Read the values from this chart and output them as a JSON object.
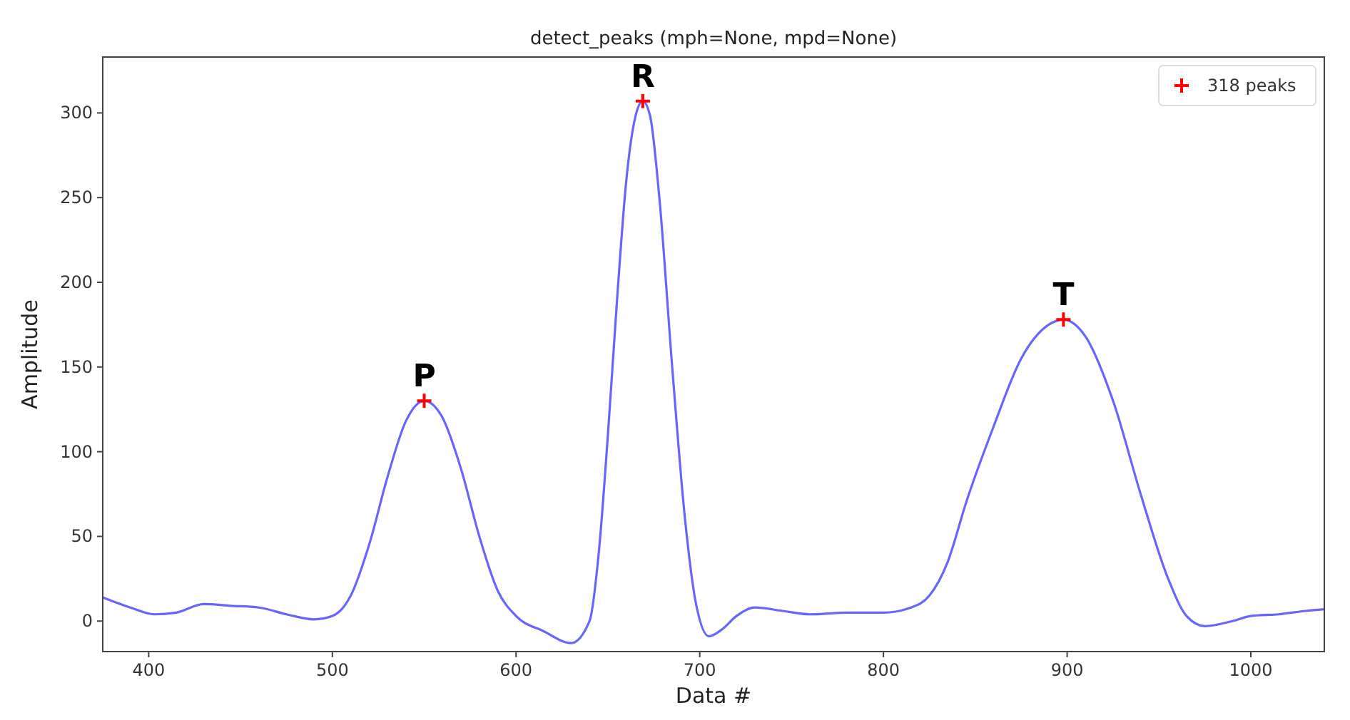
{
  "chart_data": {
    "type": "line",
    "title": "detect_peaks (mph=None, mpd=None)",
    "xlabel": "Data #",
    "ylabel": "Amplitude",
    "xlim": [
      375,
      1040
    ],
    "xticks": [
      400,
      500,
      600,
      700,
      800,
      900,
      1000
    ],
    "ylim": [
      -18,
      333
    ],
    "yticks": [
      0,
      50,
      100,
      150,
      200,
      250,
      300
    ],
    "grid": false,
    "legend": "top right",
    "line_style": "solid",
    "series": [
      {
        "color": "#6666ff",
        "marker": "none",
        "x": [
          375,
          390,
          403,
          415,
          430,
          445,
          460,
          475,
          490,
          500,
          510,
          520,
          530,
          540,
          550,
          560,
          570,
          580,
          590,
          600,
          615,
          630,
          640,
          645,
          650,
          655,
          660,
          665,
          669,
          673,
          678,
          685,
          692,
          698,
          705,
          712,
          720,
          730,
          745,
          760,
          780,
          800,
          815,
          825,
          835,
          845,
          860,
          875,
          890,
          898,
          910,
          925,
          940,
          955,
          965,
          975,
          990,
          1000,
          1015,
          1030,
          1040
        ],
        "values": [
          14,
          8,
          4,
          5,
          10,
          9,
          8,
          4,
          1,
          3,
          15,
          45,
          85,
          118,
          130,
          120,
          90,
          50,
          18,
          3,
          -6,
          -13,
          0,
          40,
          110,
          190,
          260,
          298,
          307,
          298,
          250,
          150,
          60,
          10,
          -9,
          -5,
          3,
          8,
          6,
          4,
          5,
          5,
          8,
          15,
          35,
          70,
          115,
          155,
          175,
          178,
          168,
          130,
          75,
          25,
          3,
          -3,
          0,
          3,
          4,
          6,
          7
        ]
      },
      {
        "type": "scatter",
        "name": "318 peaks",
        "color": "#ff0000",
        "marker": "cross",
        "x": [
          550,
          669,
          898
        ],
        "values": [
          130,
          307,
          178
        ]
      }
    ],
    "annotations": [
      {
        "text": "P",
        "x": 550,
        "y": 130
      },
      {
        "text": "R",
        "x": 669,
        "y": 307
      },
      {
        "text": "T",
        "x": 898,
        "y": 178
      }
    ]
  }
}
